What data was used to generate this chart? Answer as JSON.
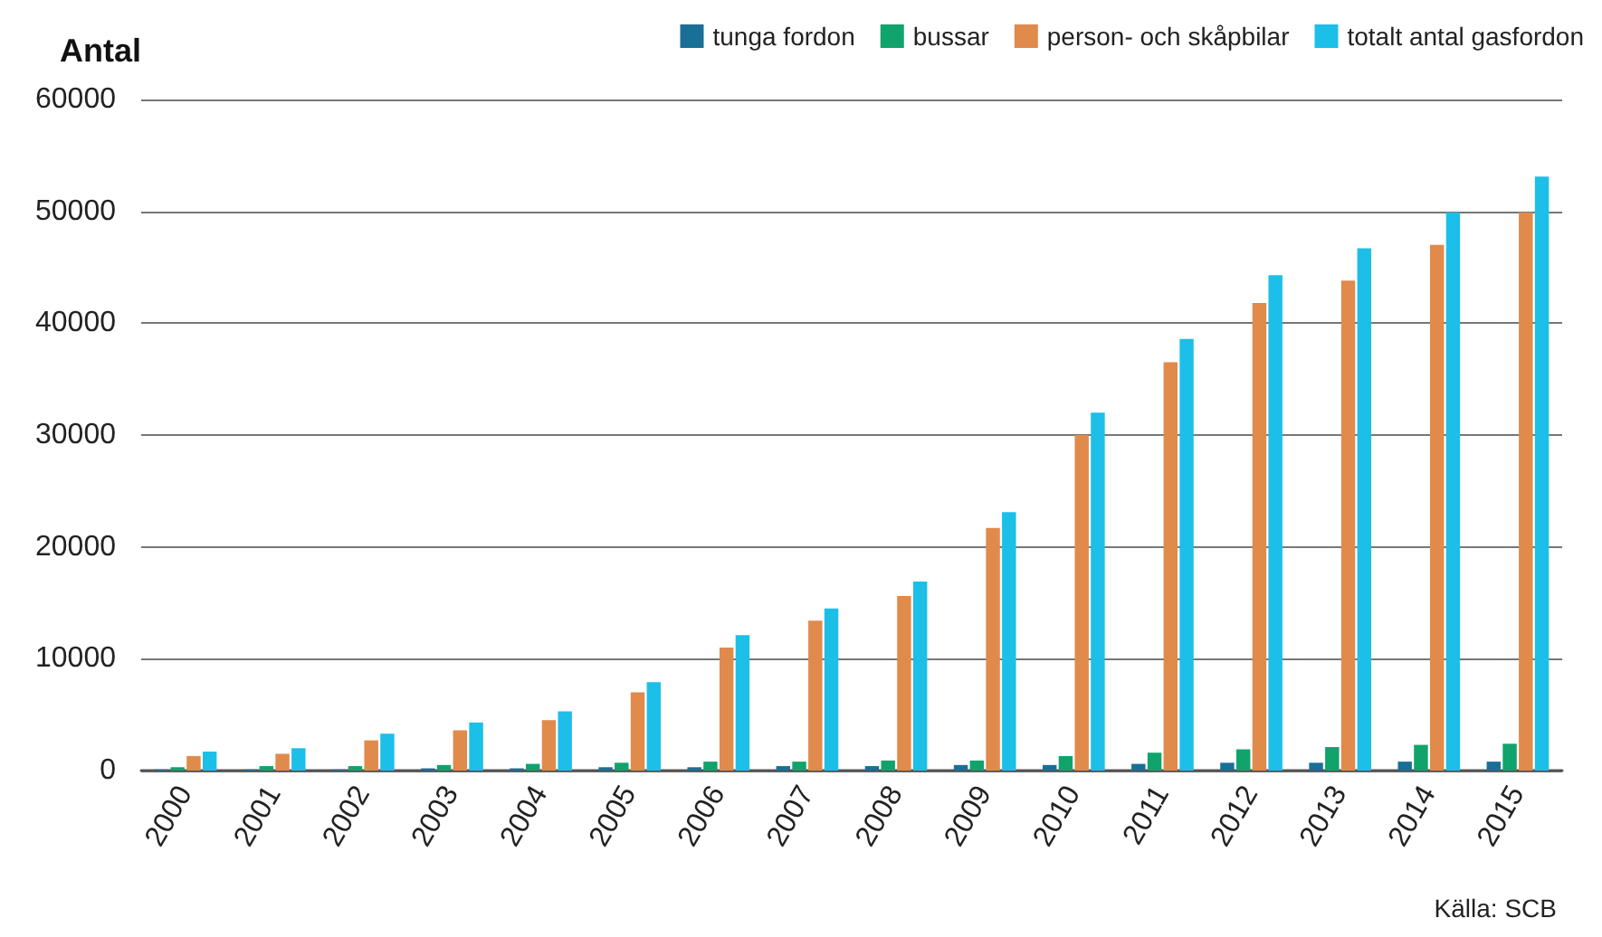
{
  "chart_data": {
    "type": "bar",
    "ylabel": "Antal",
    "annotations": [
      "Källa: SCB"
    ],
    "categories": [
      "2000",
      "2001",
      "2002",
      "2003",
      "2004",
      "2005",
      "2006",
      "2007",
      "2008",
      "2009",
      "2010",
      "2011",
      "2012",
      "2013",
      "2014",
      "2015"
    ],
    "series": [
      {
        "name": "tunga fordon",
        "color": "#1a6f96",
        "values": [
          100,
          100,
          100,
          200,
          200,
          300,
          300,
          400,
          400,
          500,
          500,
          600,
          700,
          700,
          800,
          800
        ]
      },
      {
        "name": "bussar",
        "color": "#10a36b",
        "values": [
          300,
          400,
          400,
          500,
          600,
          700,
          800,
          800,
          900,
          900,
          1300,
          1600,
          1900,
          2100,
          2300,
          2400
        ]
      },
      {
        "name": "person- och skåpbilar",
        "color": "#e08a4c",
        "values": [
          1300,
          1500,
          2700,
          3600,
          4500,
          7000,
          11000,
          13400,
          15600,
          21700,
          30000,
          36500,
          41800,
          43800,
          47000,
          49900
        ]
      },
      {
        "name": "totalt antal gasfordon",
        "color": "#1cbfe8",
        "values": [
          1700,
          2000,
          3300,
          4300,
          5300,
          7900,
          12100,
          14500,
          16900,
          23100,
          32000,
          38600,
          44300,
          46700,
          49900,
          53100
        ]
      }
    ],
    "ylim": [
      0,
      60000
    ],
    "yticks": [
      0,
      10000,
      20000,
      30000,
      40000,
      50000,
      60000
    ],
    "grid": "y",
    "legend": "top right"
  }
}
